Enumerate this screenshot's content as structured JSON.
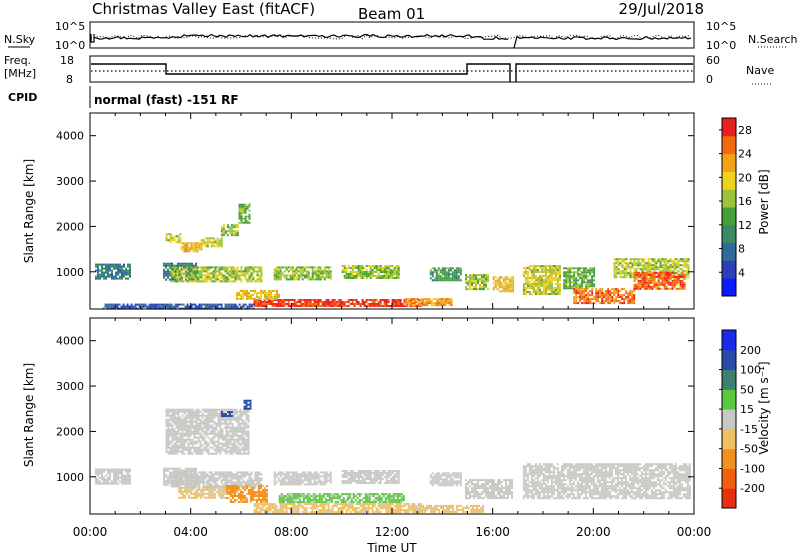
{
  "header": {
    "station": "Christmas Valley East (fitACF)",
    "beam": "Beam 01",
    "date": "29/Jul/2018"
  },
  "panels": {
    "nsky": {
      "label": "N.Sky",
      "right_label": "N.Search",
      "left_ticks": [
        "10^5",
        "10^0"
      ],
      "right_ticks": [
        "10^5",
        "10^0"
      ]
    },
    "freq": {
      "label_line1": "Freq.",
      "label_line2": "[MHz]",
      "right_label": "Nave",
      "left_ticks": [
        "18",
        "8"
      ],
      "right_ticks": [
        "60",
        "0"
      ]
    },
    "cpid": {
      "label": "CPID",
      "value": "normal (fast) -151 RF"
    }
  },
  "chart_data": [
    {
      "type": "heatmap",
      "name": "power",
      "ylabel": "Slant Range [km]",
      "xlabel": "",
      "x_ticks": [
        "00:00",
        "04:00",
        "08:00",
        "12:00",
        "16:00",
        "20:00",
        "00:00"
      ],
      "x_range_hours": [
        0,
        24
      ],
      "y_ticks": [
        "1000",
        "2000",
        "3000",
        "4000"
      ],
      "y_tick_values": [
        1000,
        2000,
        3000,
        4000
      ],
      "y_range_km": [
        180,
        4500
      ],
      "colorbar": {
        "label": "Power [dB]",
        "ticks": [
          "4",
          "8",
          "12",
          "16",
          "20",
          "24",
          "28"
        ],
        "range": [
          0,
          30
        ],
        "colors": [
          "#0b1aff",
          "#2a3fb8",
          "#2f6a9a",
          "#3a8a66",
          "#46a03a",
          "#9cc33a",
          "#f0d21a",
          "#f4a018",
          "#f06a10",
          "#e82020"
        ]
      },
      "regions": [
        {
          "t0": 0.2,
          "t1": 1.6,
          "r0": 830,
          "r1": 1180,
          "v": 9
        },
        {
          "t0": 2.9,
          "t1": 4.2,
          "r0": 820,
          "r1": 1200,
          "v": 9
        },
        {
          "t0": 3.2,
          "t1": 6.8,
          "r0": 800,
          "r1": 1120,
          "v": 17
        },
        {
          "t0": 7.3,
          "t1": 9.6,
          "r0": 820,
          "r1": 1120,
          "v": 16
        },
        {
          "t0": 10.0,
          "t1": 12.3,
          "r0": 850,
          "r1": 1150,
          "v": 16
        },
        {
          "t0": 13.5,
          "t1": 14.7,
          "r0": 820,
          "r1": 1100,
          "v": 12
        },
        {
          "t0": 14.9,
          "t1": 15.8,
          "r0": 620,
          "r1": 950,
          "v": 17
        },
        {
          "t0": 16.0,
          "t1": 16.8,
          "r0": 550,
          "r1": 900,
          "v": 20
        },
        {
          "t0": 17.2,
          "t1": 18.7,
          "r0": 500,
          "r1": 1150,
          "v": 18
        },
        {
          "t0": 18.8,
          "t1": 20.0,
          "r0": 650,
          "r1": 1100,
          "v": 14
        },
        {
          "t0": 20.8,
          "t1": 23.8,
          "r0": 900,
          "r1": 1300,
          "v": 17
        },
        {
          "t0": 6.5,
          "t1": 13.2,
          "r0": 260,
          "r1": 400,
          "v": 28
        },
        {
          "t0": 5.8,
          "t1": 7.5,
          "r0": 380,
          "r1": 600,
          "v": 20
        },
        {
          "t0": 12.5,
          "t1": 14.4,
          "r0": 280,
          "r1": 420,
          "v": 22
        },
        {
          "t0": 19.2,
          "t1": 21.6,
          "r0": 300,
          "r1": 640,
          "v": 25
        },
        {
          "t0": 21.6,
          "t1": 23.6,
          "r0": 620,
          "r1": 1000,
          "v": 26
        },
        {
          "t0": 0.5,
          "t1": 6.5,
          "r0": 200,
          "r1": 300,
          "v": 6
        },
        {
          "t0": 3.0,
          "t1": 3.6,
          "r0": 1650,
          "r1": 1850,
          "v": 17
        },
        {
          "t0": 3.6,
          "t1": 4.4,
          "r0": 1450,
          "r1": 1650,
          "v": 21
        },
        {
          "t0": 4.4,
          "t1": 5.2,
          "r0": 1560,
          "r1": 1760,
          "v": 18
        },
        {
          "t0": 5.2,
          "t1": 5.9,
          "r0": 1800,
          "r1": 2050,
          "v": 16
        },
        {
          "t0": 5.9,
          "t1": 6.3,
          "r0": 2100,
          "r1": 2500,
          "v": 15
        }
      ]
    },
    {
      "type": "heatmap",
      "name": "velocity",
      "ylabel": "Slant Range [km]",
      "xlabel": "Time UT",
      "x_ticks": [
        "00:00",
        "04:00",
        "08:00",
        "12:00",
        "16:00",
        "20:00",
        "00:00"
      ],
      "x_range_hours": [
        0,
        24
      ],
      "y_ticks": [
        "1000",
        "2000",
        "3000",
        "4000"
      ],
      "y_tick_values": [
        1000,
        2000,
        3000,
        4000
      ],
      "y_range_km": [
        180,
        4500
      ],
      "colorbar": {
        "label": "Velocity [m s⁻¹]",
        "ticks": [
          "200",
          "100",
          "50",
          "15",
          "-15",
          "-50",
          "-100",
          "-200"
        ],
        "colors": [
          "#1a2ae8",
          "#2a4aa8",
          "#3c8070",
          "#5ac840",
          "#c8c8c4",
          "#f0c060",
          "#f09020",
          "#f06010",
          "#e83010"
        ]
      },
      "regions": [
        {
          "t0": 0.2,
          "t1": 1.6,
          "r0": 830,
          "r1": 1180,
          "v": 0
        },
        {
          "t0": 2.9,
          "t1": 4.2,
          "r0": 820,
          "r1": 1200,
          "v": 0
        },
        {
          "t0": 3.2,
          "t1": 6.8,
          "r0": 800,
          "r1": 1120,
          "v": 0
        },
        {
          "t0": 7.3,
          "t1": 9.6,
          "r0": 820,
          "r1": 1120,
          "v": 0
        },
        {
          "t0": 10.0,
          "t1": 12.3,
          "r0": 850,
          "r1": 1150,
          "v": 0
        },
        {
          "t0": 13.5,
          "t1": 14.7,
          "r0": 820,
          "r1": 1100,
          "v": 0
        },
        {
          "t0": 14.9,
          "t1": 16.8,
          "r0": 550,
          "r1": 950,
          "v": 0
        },
        {
          "t0": 17.2,
          "t1": 23.8,
          "r0": 550,
          "r1": 1300,
          "v": 0
        },
        {
          "t0": 5.4,
          "t1": 7.0,
          "r0": 450,
          "r1": 820,
          "v": -60
        },
        {
          "t0": 3.5,
          "t1": 5.4,
          "r0": 550,
          "r1": 780,
          "v": -20
        },
        {
          "t0": 6.5,
          "t1": 13.2,
          "r0": 240,
          "r1": 420,
          "v": -25
        },
        {
          "t0": 7.5,
          "t1": 12.5,
          "r0": 420,
          "r1": 640,
          "v": 25
        },
        {
          "t0": 12.8,
          "t1": 15.6,
          "r0": 230,
          "r1": 380,
          "v": -25
        },
        {
          "t0": 3.0,
          "t1": 6.3,
          "r0": 1500,
          "r1": 2500,
          "v": 0
        },
        {
          "t0": 5.2,
          "t1": 5.6,
          "r0": 2330,
          "r1": 2450,
          "v": 150
        },
        {
          "t0": 6.1,
          "t1": 6.4,
          "r0": 2500,
          "r1": 2700,
          "v": 120
        }
      ]
    }
  ]
}
